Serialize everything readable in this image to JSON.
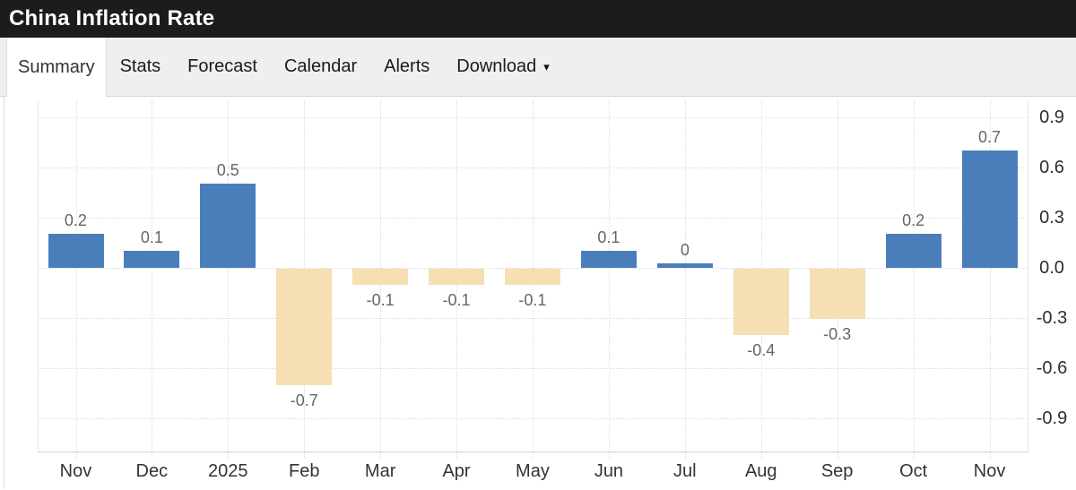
{
  "header": {
    "title": "China Inflation Rate"
  },
  "tabs": [
    {
      "label": "Summary",
      "active": true
    },
    {
      "label": "Stats",
      "active": false
    },
    {
      "label": "Forecast",
      "active": false
    },
    {
      "label": "Calendar",
      "active": false
    },
    {
      "label": "Alerts",
      "active": false
    },
    {
      "label": "Download",
      "active": false,
      "caret": "▾"
    }
  ],
  "chart_data": {
    "type": "bar",
    "title": "China Inflation Rate",
    "categories": [
      "Nov",
      "Dec",
      "2025",
      "Feb",
      "Mar",
      "Apr",
      "May",
      "Jun",
      "Jul",
      "Aug",
      "Sep",
      "Oct",
      "Nov"
    ],
    "values": [
      0.2,
      0.1,
      0.5,
      -0.7,
      -0.1,
      -0.1,
      -0.1,
      0.1,
      0,
      -0.4,
      -0.3,
      0.2,
      0.7
    ],
    "data_labels": [
      "0.2",
      "0.1",
      "0.5",
      "-0.7",
      "-0.1",
      "-0.1",
      "-0.1",
      "0.1",
      "0",
      "-0.4",
      "-0.3",
      "0.2",
      "0.7"
    ],
    "y_tick_values": [
      0.9,
      0.6,
      0.3,
      0,
      -0.3,
      -0.6,
      -0.9
    ],
    "y_tick_labels": [
      "0.9",
      "0.6",
      "0.3",
      "0.0",
      "-0.3",
      "-0.6",
      "-0.9"
    ],
    "ylim": [
      -1.1,
      1.0
    ],
    "xlabel": "",
    "ylabel": "",
    "yaxis_position": "right",
    "grid": "dotted",
    "legend": false,
    "colors": {
      "positive_bar": "#4a7ebb",
      "negative_bar": "#f5dfb3",
      "grid_line": "#dcdcdc",
      "data_label": "#666666",
      "axis_label": "#333333"
    }
  }
}
